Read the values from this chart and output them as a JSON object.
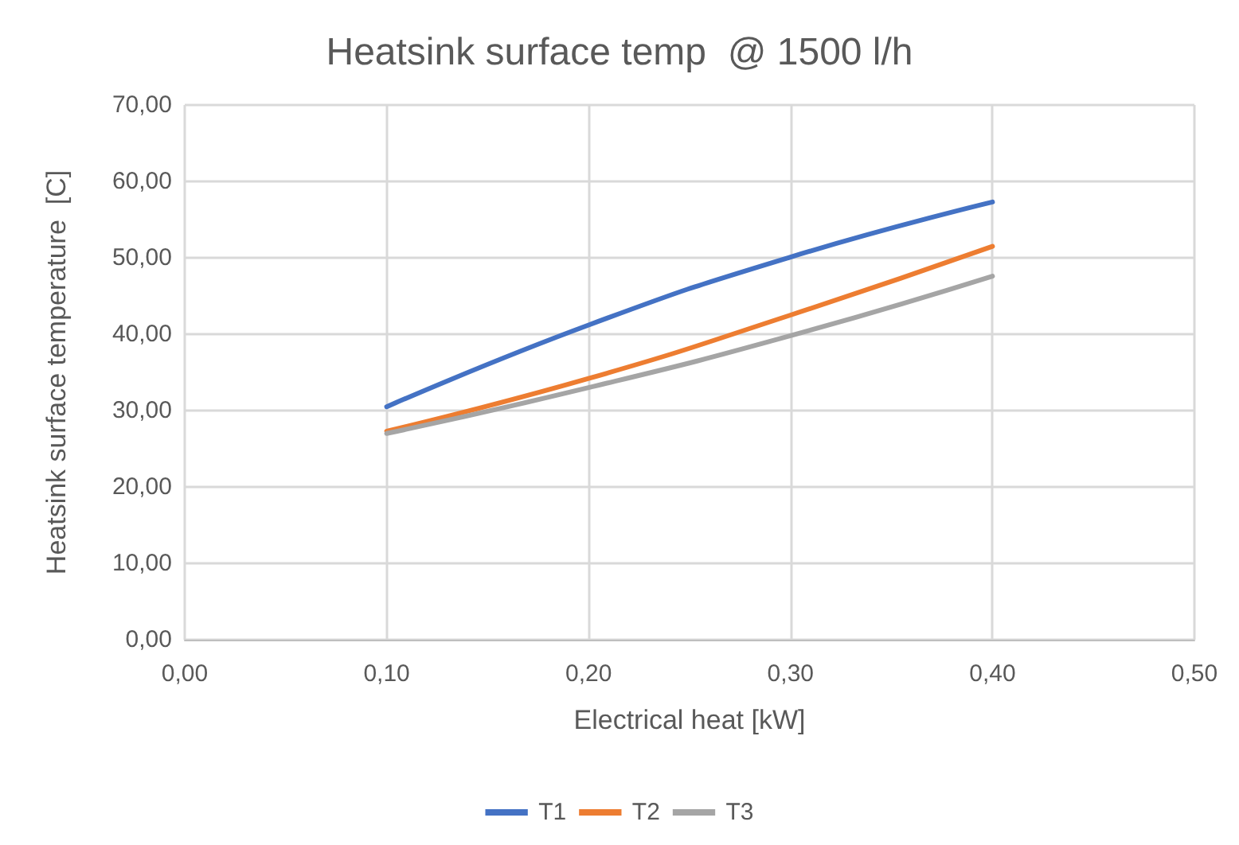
{
  "chart_data": {
    "type": "line",
    "title": "Heatsink surface temp  @ 1500 l/h",
    "xlabel": "Electrical heat [kW]",
    "ylabel": "Heatsink surface temperature  [C]",
    "xlim": [
      0,
      0.5
    ],
    "xticks": [
      {
        "value": 0,
        "label": "0,00"
      },
      {
        "value": 0.1,
        "label": "0,10"
      },
      {
        "value": 0.2,
        "label": "0,20"
      },
      {
        "value": 0.3,
        "label": "0,30"
      },
      {
        "value": 0.4,
        "label": "0,40"
      },
      {
        "value": 0.5,
        "label": "0,50"
      }
    ],
    "ylim": [
      0,
      70
    ],
    "yticks": [
      {
        "value": 0,
        "label": "0,00"
      },
      {
        "value": 10,
        "label": "10,00"
      },
      {
        "value": 20,
        "label": "20,00"
      },
      {
        "value": 30,
        "label": "30,00"
      },
      {
        "value": 40,
        "label": "40,00"
      },
      {
        "value": 50,
        "label": "50,00"
      },
      {
        "value": 60,
        "label": "60,00"
      },
      {
        "value": 70,
        "label": "70,00"
      }
    ],
    "x": [
      0.1,
      0.2,
      0.3,
      0.4
    ],
    "series": [
      {
        "name": "T1",
        "color": "#4472c4",
        "values": [
          30.5,
          41.2,
          50.1,
          57.3
        ]
      },
      {
        "name": "T2",
        "color": "#ed7d31",
        "values": [
          27.3,
          34.2,
          42.5,
          51.5
        ]
      },
      {
        "name": "T3",
        "color": "#a5a5a5",
        "values": [
          27.0,
          33.0,
          39.8,
          47.6
        ]
      }
    ],
    "grid": true,
    "legend": "bottom",
    "marker": "none",
    "line_style": "solid"
  }
}
